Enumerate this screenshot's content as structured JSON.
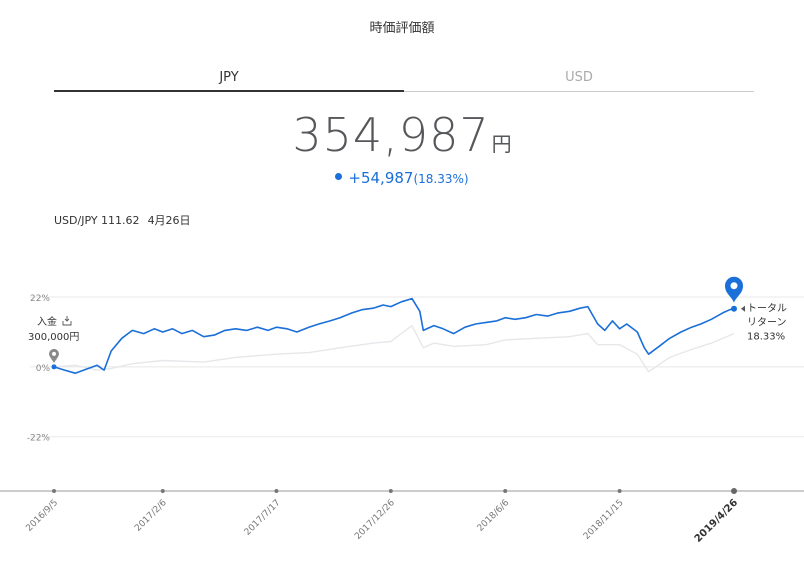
{
  "page": {
    "title": "時価評価額"
  },
  "tabs": [
    {
      "label": "JPY",
      "active": true
    },
    {
      "label": "USD",
      "active": false
    }
  ],
  "valuation": {
    "amount": "354,987",
    "unit": "円",
    "change": "+54,987",
    "change_pct": "(18.33%)"
  },
  "fx": {
    "pair": "USD/JPY 111.62",
    "date": "4月26日"
  },
  "colors": {
    "series_main": "#1a6fd8",
    "series_benchmark": "#e6e7ea",
    "axis": "#888888"
  },
  "deposit": {
    "label": "入金",
    "icon": "inbox-icon",
    "amount": "300,000円"
  },
  "total_return": {
    "line1": "トータル",
    "line2": "リターン",
    "value": "18.33%"
  },
  "chart_data": {
    "type": "line",
    "ylabel": "",
    "y_ticks": [
      "22%",
      "0%",
      "-22%"
    ],
    "y_tick_values": [
      22,
      0,
      -22
    ],
    "ylim": [
      -35,
      28
    ],
    "x_ticks": [
      "2016/9/5",
      "2017/2/6",
      "2017/7/17",
      "2017/12/26",
      "2018/6/6",
      "2018/11/15",
      "2019/4/26"
    ],
    "grid": true,
    "series": [
      {
        "points": [
          [
            "2016-09-05",
            0.0
          ],
          [
            "2016-09-20",
            -1.0
          ],
          [
            "2016-10-05",
            -2.0
          ],
          [
            "2016-10-20",
            -0.8
          ],
          [
            "2016-11-05",
            0.5
          ],
          [
            "2016-11-15",
            -1.0
          ],
          [
            "2016-11-25",
            5.0
          ],
          [
            "2016-12-10",
            9.0
          ],
          [
            "2016-12-25",
            11.5
          ],
          [
            "2017-01-10",
            10.5
          ],
          [
            "2017-01-25",
            12.0
          ],
          [
            "2017-02-06",
            11.0
          ],
          [
            "2017-02-20",
            12.0
          ],
          [
            "2017-03-05",
            10.5
          ],
          [
            "2017-03-20",
            11.5
          ],
          [
            "2017-04-05",
            9.5
          ],
          [
            "2017-04-20",
            10.0
          ],
          [
            "2017-05-05",
            11.5
          ],
          [
            "2017-05-20",
            12.0
          ],
          [
            "2017-06-05",
            11.5
          ],
          [
            "2017-06-20",
            12.5
          ],
          [
            "2017-07-05",
            11.5
          ],
          [
            "2017-07-17",
            12.5
          ],
          [
            "2017-08-01",
            12.0
          ],
          [
            "2017-08-15",
            11.0
          ],
          [
            "2017-09-01",
            12.5
          ],
          [
            "2017-09-15",
            13.5
          ],
          [
            "2017-10-01",
            14.5
          ],
          [
            "2017-10-15",
            15.5
          ],
          [
            "2017-11-01",
            17.0
          ],
          [
            "2017-11-15",
            18.0
          ],
          [
            "2017-12-01",
            18.5
          ],
          [
            "2017-12-15",
            19.5
          ],
          [
            "2017-12-26",
            19.0
          ],
          [
            "2018-01-10",
            20.5
          ],
          [
            "2018-01-25",
            21.5
          ],
          [
            "2018-02-05",
            17.5
          ],
          [
            "2018-02-10",
            11.5
          ],
          [
            "2018-02-25",
            13.0
          ],
          [
            "2018-03-10",
            12.0
          ],
          [
            "2018-03-25",
            10.5
          ],
          [
            "2018-04-10",
            12.5
          ],
          [
            "2018-04-25",
            13.5
          ],
          [
            "2018-05-10",
            14.0
          ],
          [
            "2018-05-25",
            14.5
          ],
          [
            "2018-06-06",
            15.5
          ],
          [
            "2018-06-20",
            15.0
          ],
          [
            "2018-07-05",
            15.5
          ],
          [
            "2018-07-20",
            16.5
          ],
          [
            "2018-08-05",
            16.0
          ],
          [
            "2018-08-20",
            17.0
          ],
          [
            "2018-09-05",
            17.5
          ],
          [
            "2018-09-20",
            18.5
          ],
          [
            "2018-10-01",
            19.0
          ],
          [
            "2018-10-15",
            13.5
          ],
          [
            "2018-10-25",
            11.5
          ],
          [
            "2018-11-05",
            14.5
          ],
          [
            "2018-11-15",
            12.0
          ],
          [
            "2018-11-25",
            13.5
          ],
          [
            "2018-12-10",
            11.0
          ],
          [
            "2018-12-20",
            6.0
          ],
          [
            "2018-12-26",
            4.0
          ],
          [
            "2019-01-10",
            6.5
          ],
          [
            "2019-01-25",
            9.0
          ],
          [
            "2019-02-10",
            11.0
          ],
          [
            "2019-02-25",
            12.5
          ],
          [
            "2019-03-10",
            13.5
          ],
          [
            "2019-03-25",
            15.0
          ],
          [
            "2019-04-10",
            17.0
          ],
          [
            "2019-04-20",
            18.0
          ],
          [
            "2019-04-26",
            18.33
          ]
        ]
      },
      {
        "points": [
          [
            "2016-09-05",
            0.0
          ],
          [
            "2016-10-05",
            0.5
          ],
          [
            "2016-11-05",
            -1.0
          ],
          [
            "2016-11-25",
            -0.5
          ],
          [
            "2016-12-25",
            1.0
          ],
          [
            "2017-02-06",
            2.0
          ],
          [
            "2017-04-05",
            1.5
          ],
          [
            "2017-05-20",
            3.0
          ],
          [
            "2017-07-17",
            4.0
          ],
          [
            "2017-09-01",
            4.5
          ],
          [
            "2017-10-15",
            6.0
          ],
          [
            "2017-12-01",
            7.5
          ],
          [
            "2017-12-26",
            8.0
          ],
          [
            "2018-01-25",
            13.0
          ],
          [
            "2018-02-10",
            6.0
          ],
          [
            "2018-02-25",
            7.5
          ],
          [
            "2018-03-25",
            6.5
          ],
          [
            "2018-05-10",
            7.0
          ],
          [
            "2018-06-06",
            8.5
          ],
          [
            "2018-07-20",
            9.0
          ],
          [
            "2018-09-05",
            9.5
          ],
          [
            "2018-10-01",
            10.5
          ],
          [
            "2018-10-15",
            7.0
          ],
          [
            "2018-11-15",
            7.0
          ],
          [
            "2018-12-10",
            4.0
          ],
          [
            "2018-12-26",
            -1.5
          ],
          [
            "2019-01-25",
            3.0
          ],
          [
            "2019-02-25",
            5.5
          ],
          [
            "2019-03-25",
            7.5
          ],
          [
            "2019-04-26",
            10.5
          ]
        ]
      }
    ]
  }
}
